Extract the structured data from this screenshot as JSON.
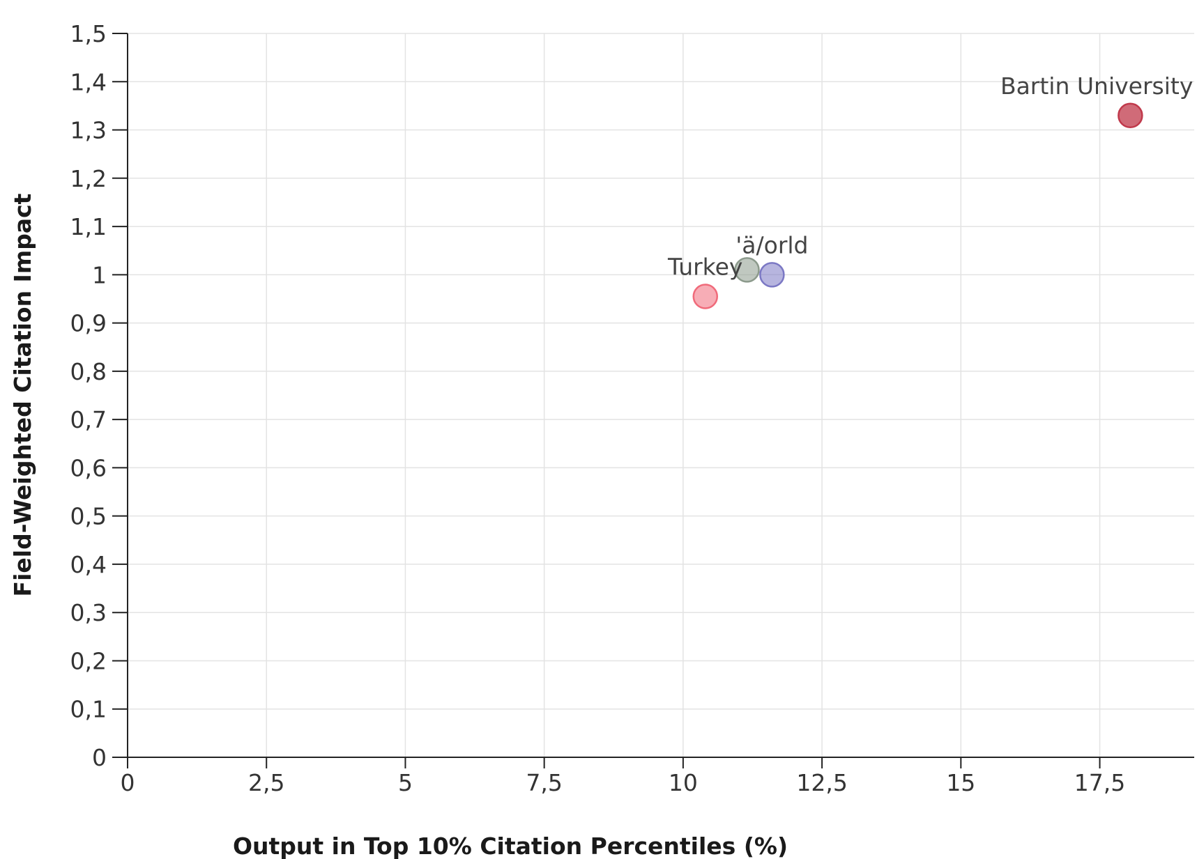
{
  "chart_data": {
    "type": "scatter",
    "title": "",
    "xlabel": "Output in Top 10% Citation Percentiles (%)",
    "ylabel": "Field-Weighted Citation Impact",
    "xlim": [
      0,
      19.2
    ],
    "ylim": [
      0,
      1.5
    ],
    "grid": true,
    "x_ticks": [
      {
        "value": 0,
        "label": "0"
      },
      {
        "value": 2.5,
        "label": "2,5"
      },
      {
        "value": 5,
        "label": "5"
      },
      {
        "value": 7.5,
        "label": "7,5"
      },
      {
        "value": 10,
        "label": "10"
      },
      {
        "value": 12.5,
        "label": "12,5"
      },
      {
        "value": 15,
        "label": "15"
      },
      {
        "value": 17.5,
        "label": "17,5"
      }
    ],
    "y_ticks": [
      {
        "value": 0,
        "label": "0"
      },
      {
        "value": 0.1,
        "label": "0,1"
      },
      {
        "value": 0.2,
        "label": "0,2"
      },
      {
        "value": 0.3,
        "label": "0,3"
      },
      {
        "value": 0.4,
        "label": "0,4"
      },
      {
        "value": 0.5,
        "label": "0,5"
      },
      {
        "value": 0.6,
        "label": "0,6"
      },
      {
        "value": 0.7,
        "label": "0,7"
      },
      {
        "value": 0.8,
        "label": "0,8"
      },
      {
        "value": 0.9,
        "label": "0,9"
      },
      {
        "value": 1,
        "label": "1"
      },
      {
        "value": 1.1,
        "label": "1,1"
      },
      {
        "value": 1.2,
        "label": "1,2"
      },
      {
        "value": 1.3,
        "label": "1,3"
      },
      {
        "value": 1.4,
        "label": "1,4"
      },
      {
        "value": 1.5,
        "label": "1,5"
      }
    ],
    "points": [
      {
        "label": "Bartin University",
        "x": 18.05,
        "y": 1.33,
        "color": "#c0394b",
        "fill_opacity": 0.75,
        "label_pos": "above-left"
      },
      {
        "label": "",
        "x": 11.15,
        "y": 1.01,
        "color": "#8c9a8c",
        "fill_opacity": 0.55,
        "label_pos": "none"
      },
      {
        "label": "'ä/orld",
        "x": 11.6,
        "y": 1.0,
        "color": "#7b78c4",
        "fill_opacity": 0.55,
        "label_pos": "above"
      },
      {
        "label": "Turkey",
        "x": 10.4,
        "y": 0.955,
        "color": "#f06a7a",
        "fill_opacity": 0.55,
        "label_pos": "above"
      }
    ]
  }
}
